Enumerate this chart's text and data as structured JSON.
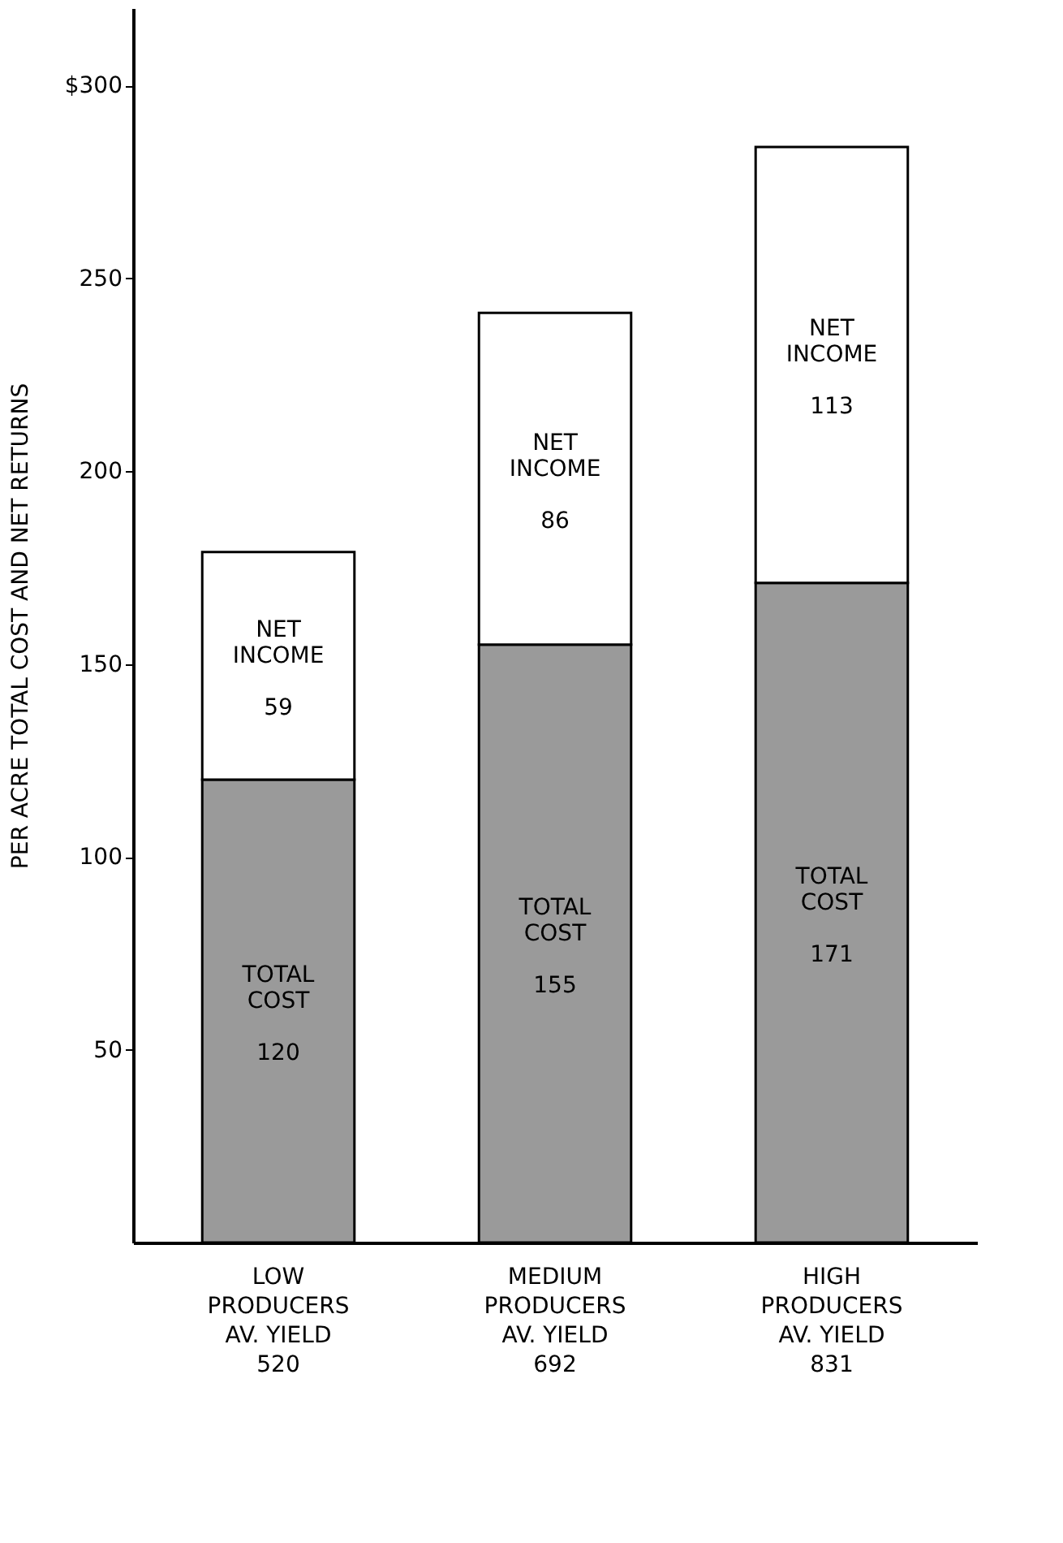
{
  "chart_data": {
    "type": "bar",
    "stacked": true,
    "data_labels": true,
    "ylabel": "PER ACRE TOTAL COST AND NET RETURNS",
    "categories": [
      "LOW\nPRODUCERS\n\nAV. YIELD\n520",
      "MEDIUM\nPRODUCERS\n\nAV. YIELD\n692",
      "HIGH\nPRODUCERS\n\nAV. YIELD\n831"
    ],
    "series": [
      {
        "name": "TOTAL\nCOST",
        "color": "#9a9a9a",
        "values": [
          120,
          155,
          171
        ]
      },
      {
        "name": "NET\nINCOME",
        "color": "#ffffff",
        "values": [
          59,
          86,
          113
        ]
      }
    ],
    "ylim": [
      0,
      320
    ],
    "yticks": [
      50,
      100,
      150,
      200,
      250,
      {
        "value": 300,
        "label": "$300"
      }
    ],
    "grid": false,
    "legend": false
  }
}
